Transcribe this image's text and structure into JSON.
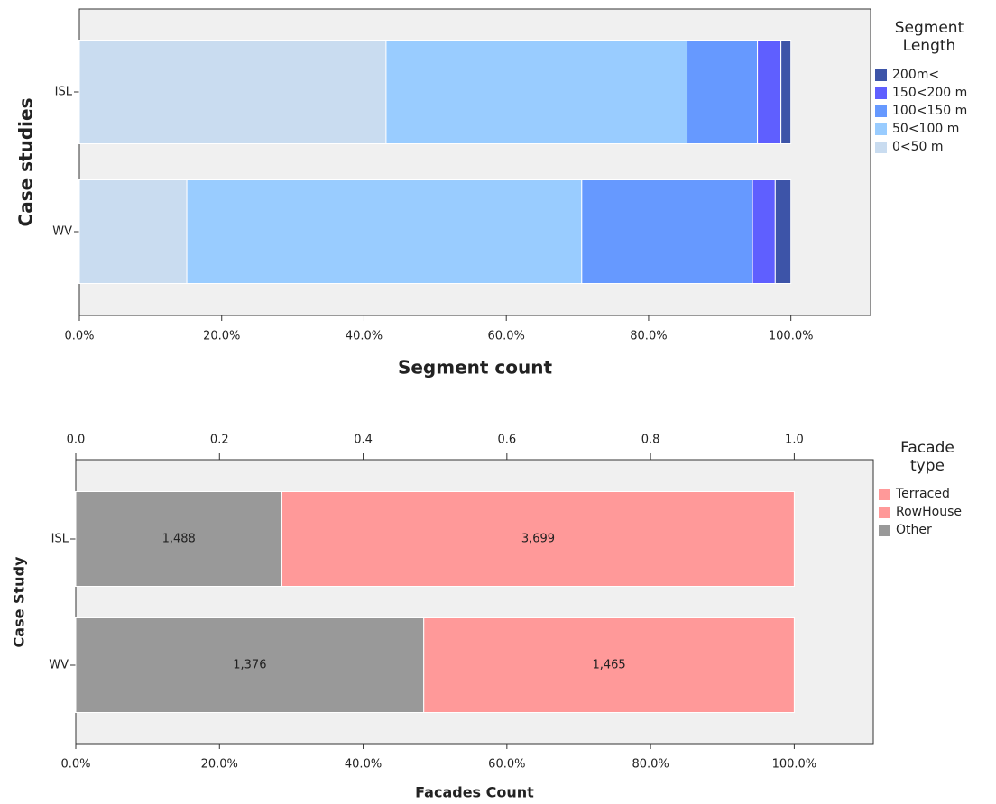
{
  "chart_data": [
    {
      "type": "bar",
      "orientation": "horizontal",
      "stacking": "stacked",
      "legend_order": "reversed",
      "y_label": "Case studies",
      "x_label": "Segment count",
      "legend_title": "Segment Length",
      "categories": [
        "ISL",
        "WV"
      ],
      "series": [
        {
          "name": "0<50 m",
          "color": "#c9dcf0",
          "values": [
            43.1,
            15.1
          ]
        },
        {
          "name": "50<100 m",
          "color": "#99ccff",
          "values": [
            42.3,
            55.5
          ]
        },
        {
          "name": "100<150 m",
          "color": "#6699ff",
          "values": [
            9.9,
            24.0
          ]
        },
        {
          "name": "150<200 m",
          "color": "#5f5fff",
          "values": [
            3.3,
            3.2
          ]
        },
        {
          "name": "200m<",
          "color": "#3d54a8",
          "values": [
            1.4,
            2.2
          ]
        }
      ],
      "xlim": [
        0,
        111.2
      ],
      "xticks": [
        {
          "value": 0,
          "label": "0.0%"
        },
        {
          "value": 20,
          "label": "20.0%"
        },
        {
          "value": 40,
          "label": "40.0%"
        },
        {
          "value": 60,
          "label": "60.0%"
        },
        {
          "value": 80,
          "label": "80.0%"
        },
        {
          "value": 100,
          "label": "100.0%"
        }
      ]
    },
    {
      "type": "bar",
      "orientation": "horizontal",
      "stacking": "percent",
      "legend_order": "reversed",
      "y_label": "Case Study",
      "x_label": "Facades Count",
      "legend_title": "Facade type",
      "categories": [
        "ISL",
        "WV"
      ],
      "series": [
        {
          "name": "Other",
          "color": "#999999",
          "values": [
            1488,
            1376
          ],
          "value_labels": [
            "1,488",
            "1,376"
          ]
        },
        {
          "name": "RowHouse",
          "color": "#ff9999",
          "values": [
            null,
            null
          ]
        },
        {
          "name": "Terraced",
          "color": "#ff9999",
          "values": [
            3699,
            1465
          ],
          "value_labels": [
            "3,699",
            "1,465"
          ]
        }
      ],
      "xlim": [
        0,
        111
      ],
      "xticks": [
        {
          "value": 0,
          "label": "0.0%"
        },
        {
          "value": 20,
          "label": "20.0%"
        },
        {
          "value": 40,
          "label": "40.0%"
        },
        {
          "value": 60,
          "label": "60.0%"
        },
        {
          "value": 80,
          "label": "80.0%"
        },
        {
          "value": 100,
          "label": "100.0%"
        }
      ],
      "x2lim": [
        0,
        1.11
      ],
      "x2ticks": [
        {
          "value": 0,
          "label": "0.0"
        },
        0.2,
        0.4,
        0.6,
        0.8,
        {
          "value": 1,
          "label": "1.0"
        }
      ]
    }
  ]
}
